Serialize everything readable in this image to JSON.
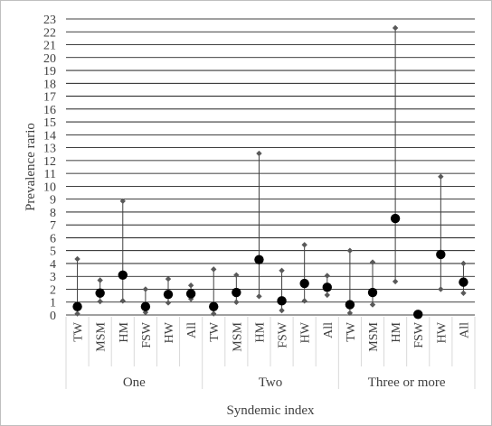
{
  "chart_data": {
    "type": "scatter",
    "title": "",
    "ylabel": "Prevalence rario",
    "xlabel": "Syndemic index",
    "ylim": [
      0,
      23
    ],
    "yticks": [
      "0",
      "1",
      "2",
      "3",
      "4",
      "5",
      "6",
      "7",
      "8",
      "9",
      "10",
      "11",
      "12",
      "13",
      "14",
      "15",
      "16",
      "17",
      "18",
      "19",
      "20",
      "21",
      "22",
      "23"
    ],
    "grid": true,
    "groups": [
      {
        "label": "One",
        "items": [
          {
            "category": "TW",
            "point": 0.65,
            "lower": 0.1,
            "upper": 4.35
          },
          {
            "category": "MSM",
            "point": 1.7,
            "lower": 1.05,
            "upper": 2.7
          },
          {
            "category": "HM",
            "point": 3.1,
            "lower": 1.1,
            "upper": 8.85
          },
          {
            "category": "FSW",
            "point": 0.65,
            "lower": 0.2,
            "upper": 2.0
          },
          {
            "category": "HW",
            "point": 1.6,
            "lower": 0.95,
            "upper": 2.8
          },
          {
            "category": "All",
            "point": 1.65,
            "lower": 1.25,
            "upper": 2.3
          }
        ]
      },
      {
        "label": "Two",
        "items": [
          {
            "category": "TW",
            "point": 0.65,
            "lower": 0.1,
            "upper": 3.55
          },
          {
            "category": "MSM",
            "point": 1.75,
            "lower": 1.0,
            "upper": 3.1
          },
          {
            "category": "HM",
            "point": 4.3,
            "lower": 1.45,
            "upper": 12.55
          },
          {
            "category": "FSW",
            "point": 1.1,
            "lower": 0.35,
            "upper": 3.45
          },
          {
            "category": "HW",
            "point": 2.45,
            "lower": 1.1,
            "upper": 5.45
          },
          {
            "category": "All",
            "point": 2.15,
            "lower": 1.55,
            "upper": 3.05
          }
        ]
      },
      {
        "label": "Three or more",
        "items": [
          {
            "category": "TW",
            "point": 0.8,
            "lower": 0.15,
            "upper": 5.0
          },
          {
            "category": "MSM",
            "point": 1.75,
            "lower": 0.8,
            "upper": 4.1
          },
          {
            "category": "HM",
            "point": 7.5,
            "lower": 2.6,
            "upper": 22.3
          },
          {
            "category": "FSW",
            "point": 0.05,
            "lower": null,
            "upper": null
          },
          {
            "category": "HW",
            "point": 4.7,
            "lower": 2.0,
            "upper": 10.75
          },
          {
            "category": "All",
            "point": 2.55,
            "lower": 1.7,
            "upper": 4.0
          }
        ]
      }
    ],
    "colors": {
      "point": "#000000",
      "bound": "#595959",
      "errorbar": "#404040",
      "grid": "#000000",
      "text": "#404040",
      "divider": "#d9d9d9"
    }
  }
}
